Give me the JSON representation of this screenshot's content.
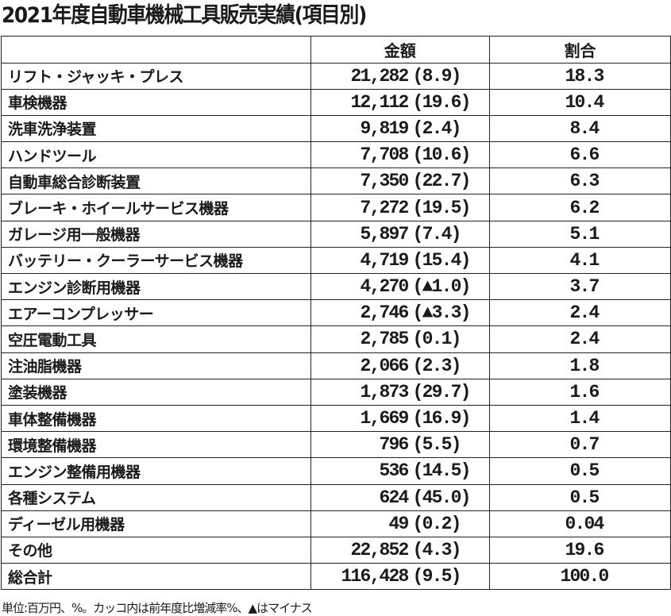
{
  "title": "2021年度自動車機械工具販売実績(項目別)",
  "table": {
    "headers": [
      "",
      "金額",
      "割合"
    ],
    "rows": [
      {
        "item": "リフト・ジャッキ・プレス",
        "amount": "21,282",
        "change": "8.9",
        "share": "18.3"
      },
      {
        "item": "車検機器",
        "amount": "12,112",
        "change": "19.6",
        "share": "10.4"
      },
      {
        "item": "洗車洗浄装置",
        "amount": "9,819",
        "change": "2.4",
        "share": "8.4"
      },
      {
        "item": "ハンドツール",
        "amount": "7,708",
        "change": "10.6",
        "share": "6.6"
      },
      {
        "item": "自動車総合診断装置",
        "amount": "7,350",
        "change": "22.7",
        "share": "6.3"
      },
      {
        "item": "ブレーキ・ホイールサービス機器",
        "amount": "7,272",
        "change": "19.5",
        "share": "6.2"
      },
      {
        "item": "ガレージ用一般機器",
        "amount": "5,897",
        "change": "7.4",
        "share": "5.1"
      },
      {
        "item": "バッテリー・クーラーサービス機器",
        "amount": "4,719",
        "change": "15.4",
        "share": "4.1"
      },
      {
        "item": "エンジン診断用機器",
        "amount": "4,270",
        "change": "▲1.0",
        "share": "3.7"
      },
      {
        "item": "エアーコンプレッサー",
        "amount": "2,746",
        "change": "▲3.3",
        "share": "2.4"
      },
      {
        "item": "空圧電動工具",
        "amount": "2,785",
        "change": "0.1",
        "share": "2.4"
      },
      {
        "item": "注油脂機器",
        "amount": "2,066",
        "change": "2.3",
        "share": "1.8"
      },
      {
        "item": "塗装機器",
        "amount": "1,873",
        "change": "29.7",
        "share": "1.6"
      },
      {
        "item": "車体整備機器",
        "amount": "1,669",
        "change": "16.9",
        "share": "1.4"
      },
      {
        "item": "環境整備機器",
        "amount": "796",
        "change": "5.5",
        "share": "0.7"
      },
      {
        "item": "エンジン整備用機器",
        "amount": "536",
        "change": "14.5",
        "share": "0.5"
      },
      {
        "item": "各種システム",
        "amount": "624",
        "change": "45.0",
        "share": "0.5"
      },
      {
        "item": "ディーゼル用機器",
        "amount": "49",
        "change": "0.2",
        "share": "0.04"
      },
      {
        "item": "その他",
        "amount": "22,852",
        "change": "4.3",
        "share": "19.6"
      },
      {
        "item": "総合計",
        "amount": "116,428",
        "change": "9.5",
        "share": "100.0"
      }
    ]
  },
  "footnote": "単位:百万円、%。カッコ内は前年度比増減率%、▲はマイナス"
}
